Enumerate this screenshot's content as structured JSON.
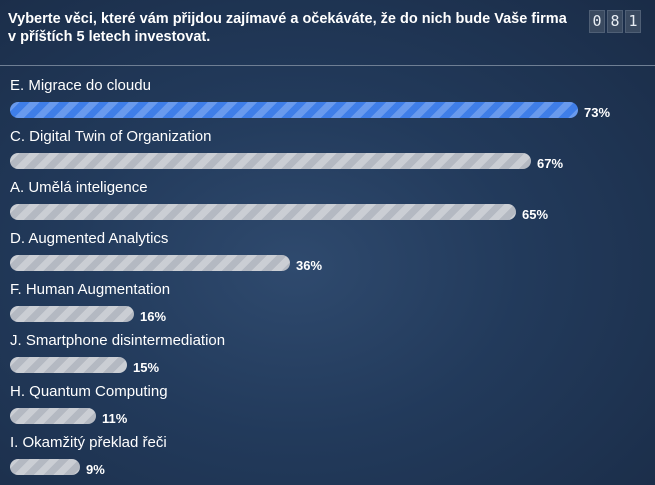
{
  "question": "Vyberte věci, které vám přijdou zajímavé a očekáváte, že do nich bude Vaše firma v příštích 5 letech investovat.",
  "counter": [
    "0",
    "8",
    "1"
  ],
  "colors": {
    "highlight_bar": "#3f7ee8",
    "default_bar": "#b4b9c2"
  },
  "options": [
    {
      "label": "E. Migrace do cloudu",
      "percent": 73,
      "percent_label": "73%",
      "highlight": true
    },
    {
      "label": "C. Digital Twin of Organization",
      "percent": 67,
      "percent_label": "67%",
      "highlight": false
    },
    {
      "label": "A. Umělá inteligence",
      "percent": 65,
      "percent_label": "65%",
      "highlight": false
    },
    {
      "label": "D. Augmented Analytics",
      "percent": 36,
      "percent_label": "36%",
      "highlight": false
    },
    {
      "label": "F. Human Augmentation",
      "percent": 16,
      "percent_label": "16%",
      "highlight": false
    },
    {
      "label": "J. Smartphone disintermediation",
      "percent": 15,
      "percent_label": "15%",
      "highlight": false
    },
    {
      "label": "H. Quantum Computing",
      "percent": 11,
      "percent_label": "11%",
      "highlight": false
    },
    {
      "label": "I. Okamžitý překlad řeči",
      "percent": 9,
      "percent_label": "9%",
      "highlight": false
    }
  ]
}
